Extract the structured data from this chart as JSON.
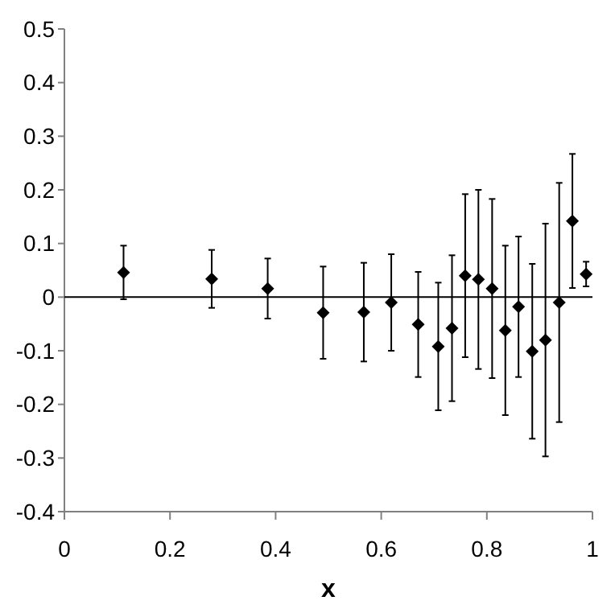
{
  "chart_data": {
    "type": "scatter",
    "xlabel": "x",
    "xlim": [
      0,
      1
    ],
    "xticks": [
      0,
      0.2,
      0.4,
      0.6,
      0.8,
      1
    ],
    "ylim": [
      -0.4,
      0.5
    ],
    "yticks": [
      -0.4,
      -0.3,
      -0.2,
      -0.1,
      0,
      0.1,
      0.2,
      0.3,
      0.4,
      0.5
    ],
    "grid": false,
    "marker": "diamond",
    "ref_lines": [
      {
        "axis": "y",
        "value": 0,
        "color": "#000000"
      }
    ],
    "series": [
      {
        "color": "#000000",
        "x": [
          0.112,
          0.279,
          0.385,
          0.49,
          0.567,
          0.619,
          0.67,
          0.708,
          0.734,
          0.759,
          0.784,
          0.81,
          0.835,
          0.86,
          0.886,
          0.911,
          0.937,
          0.962,
          0.988
        ],
        "values": [
          0.046,
          0.034,
          0.016,
          -0.029,
          -0.028,
          -0.01,
          -0.051,
          -0.092,
          -0.058,
          0.04,
          0.033,
          0.016,
          -0.062,
          -0.018,
          -0.101,
          -0.08,
          -0.01,
          0.142,
          0.043
        ],
        "errors": [
          0.05,
          0.054,
          0.056,
          0.086,
          0.092,
          0.09,
          0.098,
          0.119,
          0.136,
          0.152,
          0.167,
          0.167,
          0.158,
          0.131,
          0.163,
          0.217,
          0.223,
          0.125,
          0.023
        ]
      }
    ]
  }
}
